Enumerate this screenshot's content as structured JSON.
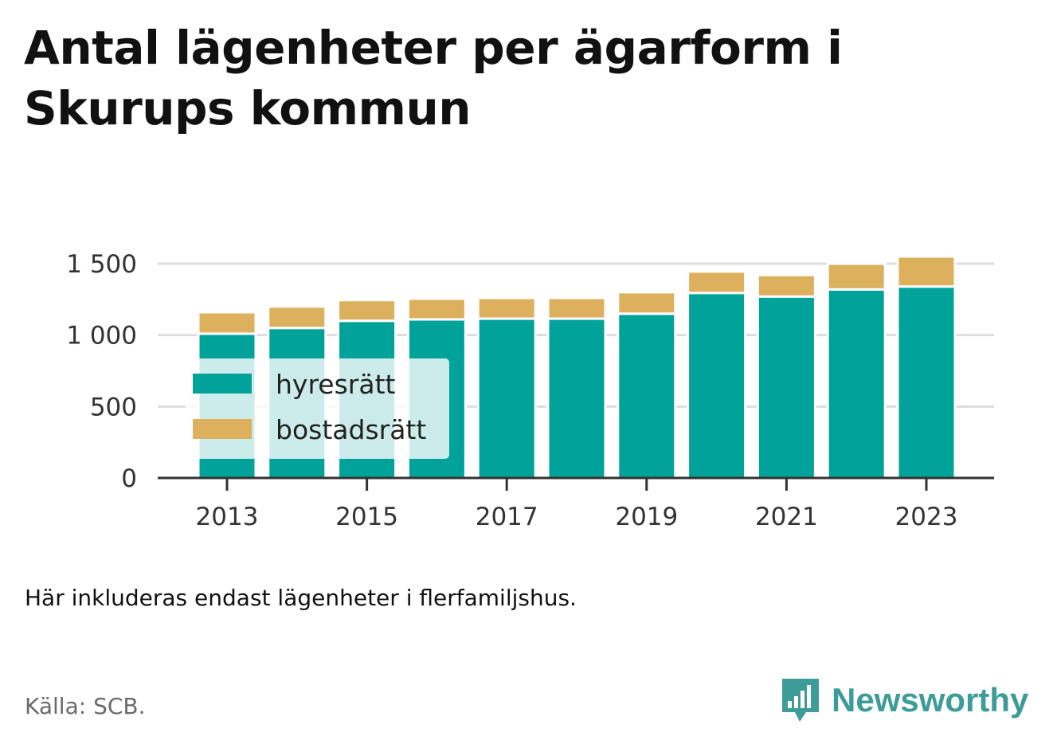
{
  "title": "Antal lägenheter per ägarform i Skurups kommun",
  "note": "Här inkluderas endast lägenheter i flerfamiljshus.",
  "source": "Källa: SCB.",
  "brand": {
    "name": "Newsworthy",
    "icon": "bar-chart-speech-bubble-icon",
    "color": "#3d9c98"
  },
  "chart_data": {
    "type": "bar",
    "stacked": true,
    "categories": [
      "2013",
      "2014",
      "2015",
      "2016",
      "2017",
      "2018",
      "2019",
      "2020",
      "2021",
      "2022",
      "2023"
    ],
    "x_tick_labels": [
      "2013",
      "2015",
      "2017",
      "2019",
      "2021",
      "2023"
    ],
    "series": [
      {
        "name": "hyresrätt",
        "color": "#00a29a",
        "values": [
          1010,
          1050,
          1100,
          1110,
          1115,
          1115,
          1150,
          1295,
          1270,
          1320,
          1340
        ]
      },
      {
        "name": "bostadsrätt",
        "color": "#dcb05c",
        "values": [
          150,
          150,
          145,
          145,
          145,
          145,
          150,
          150,
          150,
          180,
          210
        ]
      }
    ],
    "y_ticks": [
      {
        "value": 0,
        "label": "0"
      },
      {
        "value": 500,
        "label": "500"
      },
      {
        "value": 1000,
        "label": "1 000"
      },
      {
        "value": 1500,
        "label": "1 500"
      }
    ],
    "ylim": [
      0,
      1500
    ],
    "grid": true,
    "legend_position": "inside-left"
  }
}
